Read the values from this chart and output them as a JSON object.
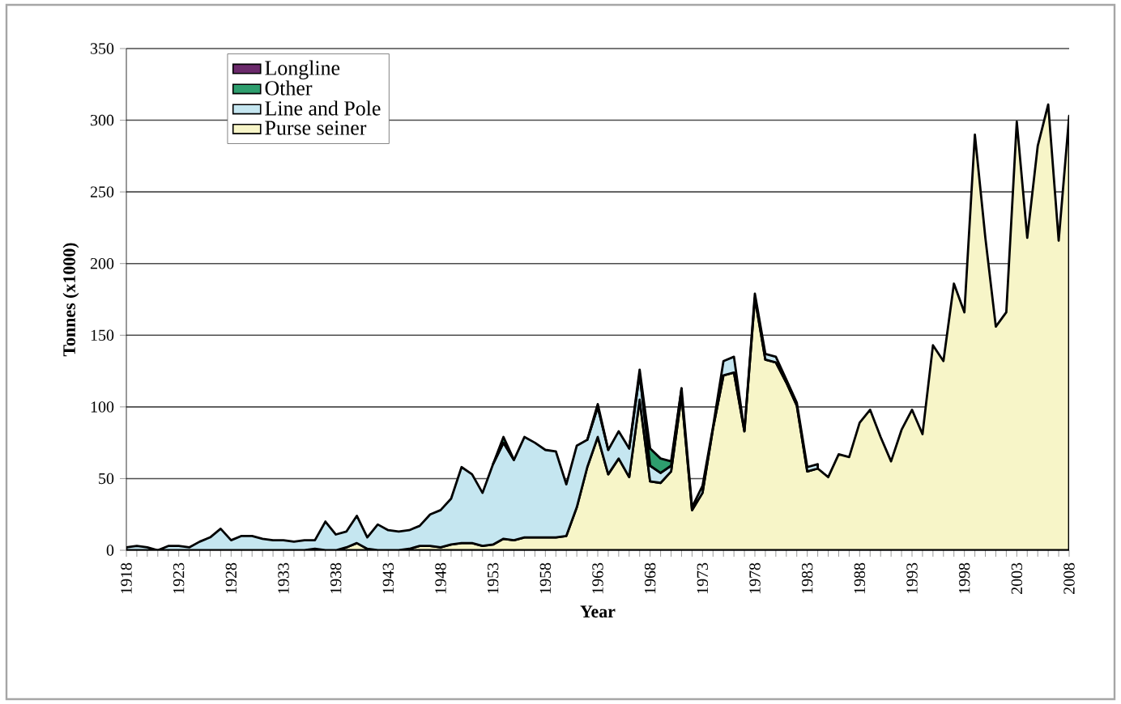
{
  "chart_data": {
    "type": "area",
    "stacked": true,
    "xlabel": "Year",
    "ylabel": "Tonnes (x1000)",
    "x": [
      1918,
      1919,
      1920,
      1921,
      1922,
      1923,
      1924,
      1925,
      1926,
      1927,
      1928,
      1929,
      1930,
      1931,
      1932,
      1933,
      1934,
      1935,
      1936,
      1937,
      1938,
      1939,
      1940,
      1941,
      1942,
      1943,
      1944,
      1945,
      1946,
      1947,
      1948,
      1949,
      1950,
      1951,
      1952,
      1953,
      1954,
      1955,
      1956,
      1957,
      1958,
      1959,
      1960,
      1961,
      1962,
      1963,
      1964,
      1965,
      1966,
      1967,
      1968,
      1969,
      1970,
      1971,
      1972,
      1973,
      1974,
      1975,
      1976,
      1977,
      1978,
      1979,
      1980,
      1981,
      1982,
      1983,
      1984,
      1985,
      1986,
      1987,
      1988,
      1989,
      1990,
      1991,
      1992,
      1993,
      1994,
      1995,
      1996,
      1997,
      1998,
      1999,
      2000,
      2001,
      2002,
      2003,
      2004,
      2005,
      2006,
      2007,
      2008
    ],
    "series": [
      {
        "name": "Purse seiner",
        "color": "#f7f5c8",
        "values": [
          0,
          0,
          0,
          0,
          0,
          0,
          0,
          0,
          0,
          0,
          0,
          0,
          0,
          0,
          0,
          0,
          0,
          0,
          1,
          0,
          0,
          2,
          5,
          1,
          0,
          0,
          0,
          1,
          3,
          3,
          2,
          4,
          5,
          5,
          3,
          4,
          8,
          7,
          9,
          9,
          9,
          9,
          10,
          30,
          58,
          79,
          53,
          64,
          51,
          105,
          48,
          47,
          55,
          108,
          28,
          40,
          85,
          122,
          124,
          83,
          176,
          133,
          131,
          117,
          101,
          55,
          57,
          51,
          67,
          65,
          89,
          98,
          79,
          62,
          84,
          98,
          81,
          143,
          132,
          186,
          166,
          290,
          218,
          156,
          166,
          299,
          218,
          282,
          311,
          216,
          303
        ]
      },
      {
        "name": "Line and Pole",
        "color": "#c5e6f0",
        "values": [
          2,
          3,
          2,
          0,
          3,
          3,
          2,
          6,
          9,
          15,
          7,
          10,
          10,
          8,
          7,
          7,
          6,
          7,
          6,
          20,
          11,
          11,
          19,
          8,
          18,
          14,
          13,
          13,
          14,
          22,
          26,
          32,
          53,
          48,
          37,
          56,
          67,
          56,
          70,
          66,
          61,
          60,
          36,
          43,
          19,
          21,
          17,
          19,
          20,
          18,
          11,
          7,
          4,
          5,
          2,
          5,
          1,
          10,
          11,
          0,
          3,
          4,
          4,
          2,
          2,
          3,
          3,
          null,
          null,
          null,
          null,
          null,
          null,
          null,
          null,
          null,
          null,
          null,
          null,
          null,
          null,
          null,
          null,
          null,
          null,
          null,
          null,
          null,
          null,
          null,
          null
        ]
      },
      {
        "name": "Other",
        "color": "#2e9e6e",
        "values": [
          null,
          null,
          null,
          null,
          null,
          null,
          null,
          null,
          null,
          null,
          null,
          null,
          null,
          null,
          null,
          null,
          null,
          null,
          null,
          null,
          null,
          null,
          null,
          null,
          null,
          null,
          null,
          null,
          null,
          null,
          null,
          null,
          null,
          null,
          null,
          0,
          4,
          0,
          null,
          null,
          null,
          null,
          null,
          null,
          0,
          2,
          0,
          null,
          0,
          3,
          12,
          10,
          3,
          0,
          null,
          null,
          null,
          null,
          null,
          null,
          null,
          null,
          null,
          null,
          null,
          null,
          null,
          null,
          null,
          null,
          null,
          null,
          null,
          null,
          null,
          null,
          null,
          null,
          null,
          null,
          null,
          null,
          null,
          null,
          null,
          null,
          null,
          null,
          null,
          null,
          null
        ]
      },
      {
        "name": "Longline",
        "color": "#6b2a6b",
        "values": [
          null,
          null,
          null,
          null,
          null,
          null,
          null,
          null,
          null,
          null,
          null,
          null,
          null,
          null,
          null,
          null,
          null,
          null,
          null,
          null,
          null,
          null,
          null,
          null,
          null,
          null,
          null,
          null,
          null,
          null,
          null,
          null,
          null,
          null,
          null,
          null,
          null,
          null,
          null,
          null,
          null,
          null,
          null,
          null,
          null,
          null,
          null,
          null,
          null,
          null,
          null,
          null,
          null,
          null,
          null,
          null,
          null,
          null,
          null,
          null,
          null,
          null,
          null,
          null,
          null,
          null,
          null,
          null,
          null,
          null,
          null,
          null,
          null,
          null,
          null,
          null,
          null,
          null,
          null,
          null,
          null,
          null,
          null,
          null,
          null,
          null,
          null,
          null,
          null,
          null,
          null
        ]
      }
    ],
    "xlim": [
      1918,
      2008
    ],
    "xticks": [
      1918,
      1923,
      1928,
      1933,
      1938,
      1943,
      1948,
      1953,
      1958,
      1963,
      1968,
      1973,
      1978,
      1983,
      1988,
      1993,
      1998,
      2003,
      2008
    ],
    "ylim": [
      0,
      350
    ],
    "yticks": [
      0,
      50,
      100,
      150,
      200,
      250,
      300,
      350
    ],
    "grid": "y",
    "legend": "top left"
  }
}
